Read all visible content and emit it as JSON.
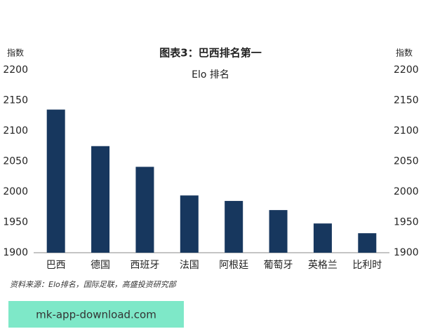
{
  "chart_data": {
    "type": "bar",
    "title": "图表3：巴西排名第一",
    "subtitle": "Elo 排名",
    "y_label": "指数",
    "y2_label": "指数",
    "categories": [
      "巴西",
      "德国",
      "西班牙",
      "法国",
      "阿根廷",
      "葡萄牙",
      "英格兰",
      "比利时"
    ],
    "values": [
      2135,
      2075,
      2041,
      1994,
      1985,
      1970,
      1948,
      1932
    ],
    "color": "#17375e",
    "ylim": [
      1900,
      2200
    ],
    "yticks": [
      1900,
      1950,
      2000,
      2050,
      2100,
      2150,
      2200
    ],
    "y2lim": [
      1900,
      2200
    ],
    "y2ticks": [
      1900,
      1950,
      2000,
      2050,
      2100,
      2150,
      2200
    ],
    "grid": false,
    "source": "资料来源：Elo排名，国际足联，高盛投资研究部",
    "watermark": "mk-app-download.com"
  }
}
